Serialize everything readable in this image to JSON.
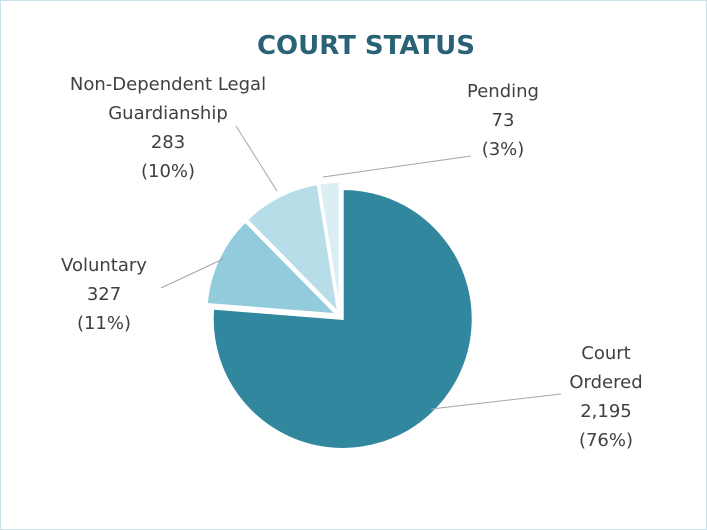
{
  "chart_data": {
    "type": "pie",
    "title": "COURT STATUS",
    "categories": [
      "Court\nOrdered",
      "Voluntary",
      "Non-Dependent Legal\nGuardianship",
      "Pending"
    ],
    "values": [
      2195,
      327,
      283,
      73
    ],
    "value_labels": [
      "2,195",
      "327",
      "283",
      "73"
    ],
    "percent_labels": [
      "(76%)",
      "(11%)",
      "(10%)",
      "(3%)"
    ],
    "colors": [
      "#31879e",
      "#92cbdc",
      "#b7dde8",
      "#dbeef4"
    ]
  }
}
